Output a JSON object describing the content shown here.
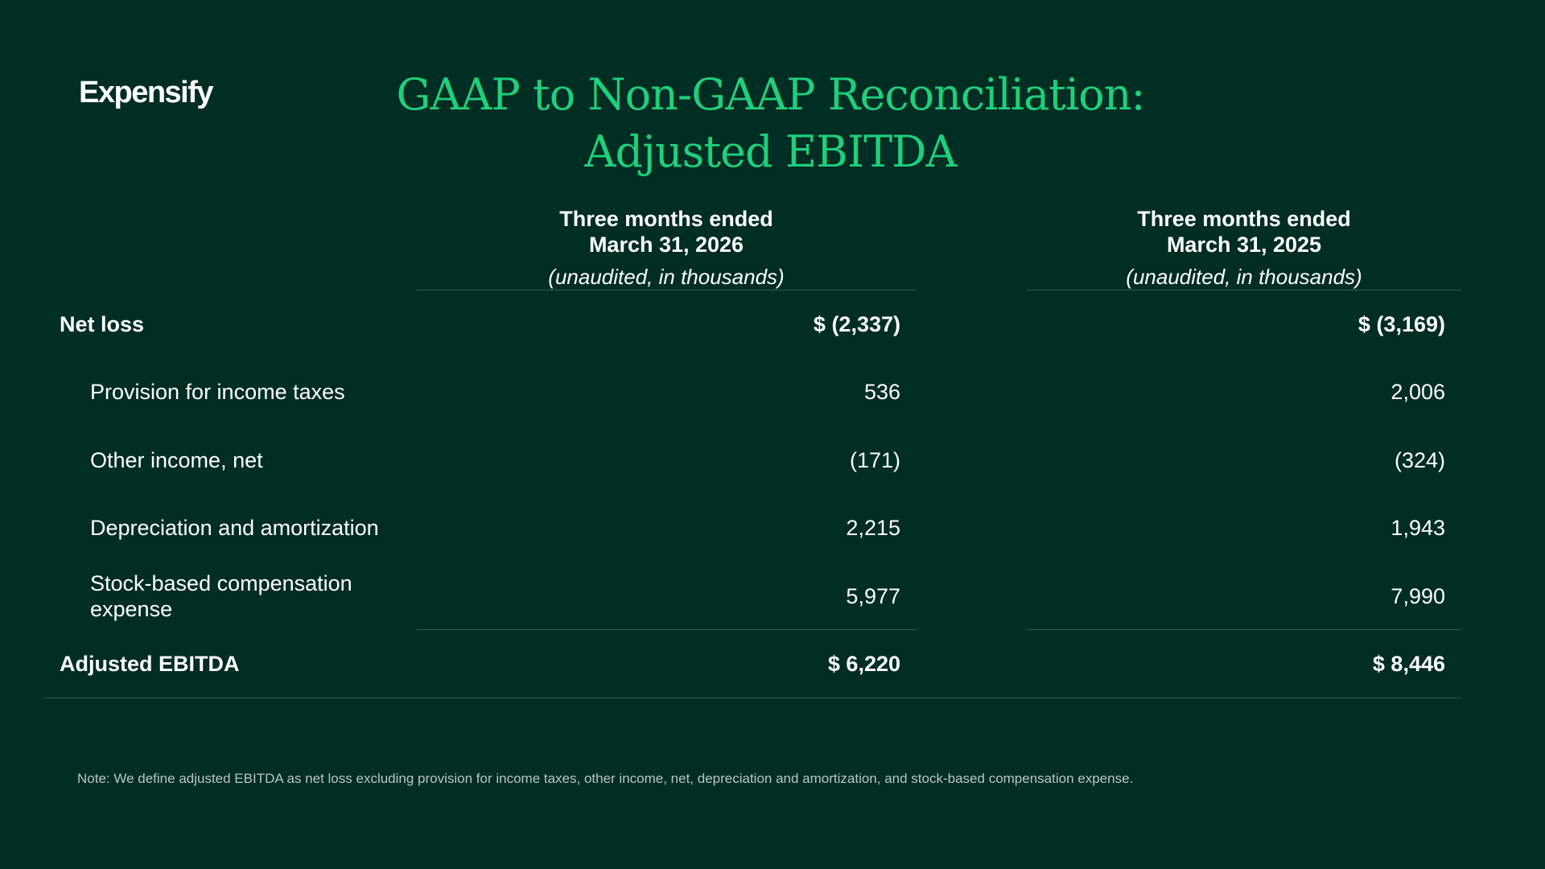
{
  "brand": {
    "logo_text": "Expensify",
    "accent_color": "#1ed07a",
    "background_color": "#002d24"
  },
  "title": {
    "line1": "GAAP to Non-GAAP Reconciliation:",
    "line2": "Adjusted EBITDA"
  },
  "columns": [
    {
      "period": "Three months ended",
      "date": "March 31, 2026",
      "subtitle": "(unaudited, in thousands)"
    },
    {
      "period": "Three months ended",
      "date": "March 31, 2025",
      "subtitle": "(unaudited, in thousands)"
    }
  ],
  "rows": [
    {
      "label": "Net loss",
      "values": [
        "$ (2,337)",
        "$ (3,169)"
      ],
      "bold": true
    },
    {
      "label": "Provision for income taxes",
      "values": [
        "536",
        "2,006"
      ],
      "bold": false
    },
    {
      "label": "Other income, net",
      "values": [
        "(171)",
        "(324)"
      ],
      "bold": false
    },
    {
      "label": "Depreciation and amortization",
      "values": [
        "2,215",
        "1,943"
      ],
      "bold": false
    },
    {
      "label_line1": "Stock-based compensation",
      "label_line2": "expense",
      "values": [
        "5,977",
        "7,990"
      ],
      "bold": false
    },
    {
      "label": "Adjusted EBITDA",
      "values": [
        "$ 6,220",
        "$ 8,446"
      ],
      "bold": true
    }
  ],
  "note": "Note: We define adjusted EBITDA as net loss excluding provision for income taxes, other income, net, depreciation and amortization, and stock-based compensation expense."
}
